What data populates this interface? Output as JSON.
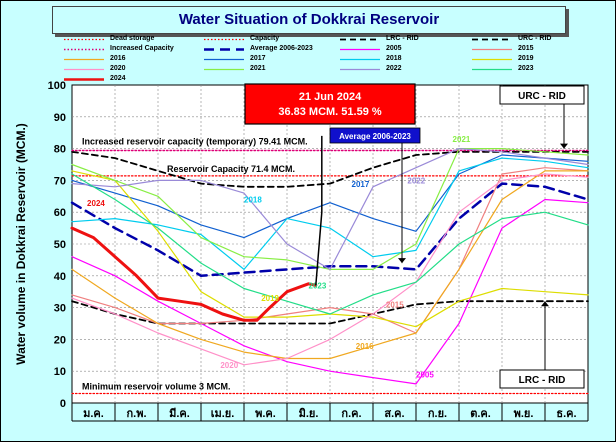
{
  "chart_data": {
    "type": "line",
    "title": "Water Situation of Dokkrai Reservoir",
    "ylabel": "Water volume in Dokkrai Reservoir (MCM.)",
    "xlabel": "",
    "ylim": [
      0,
      100
    ],
    "yticks": [
      "0",
      "10",
      "20",
      "30",
      "40",
      "50",
      "60",
      "70",
      "80",
      "90",
      "100"
    ],
    "months": [
      "ม.ค.",
      "ก.พ.",
      "มี.ค.",
      "เม.ย.",
      "พ.ค.",
      "มิ.ย.",
      "ก.ค.",
      "ส.ค.",
      "ก.ย.",
      "ต.ค.",
      "พ.ย.",
      "ธ.ค."
    ],
    "grid": true,
    "series": [
      {
        "name": "Dead storage",
        "color": "#ff0000",
        "style": "dotted",
        "width": 1.2,
        "values": [
          [
            0,
            3
          ],
          [
            12,
            3
          ]
        ]
      },
      {
        "name": "Capacity",
        "color": "#ff0000",
        "style": "dotted",
        "width": 1.2,
        "values": [
          [
            0,
            71.4
          ],
          [
            12,
            71.4
          ]
        ]
      },
      {
        "name": "LRC - RID",
        "color": "#000000",
        "style": "dashed",
        "width": 1.8,
        "values": [
          [
            0,
            32
          ],
          [
            1,
            28
          ],
          [
            2,
            25
          ],
          [
            3,
            25
          ],
          [
            4,
            25
          ],
          [
            5,
            25
          ],
          [
            6,
            25
          ],
          [
            7,
            28
          ],
          [
            8,
            31
          ],
          [
            9,
            32
          ],
          [
            10,
            32
          ],
          [
            11,
            32
          ],
          [
            12,
            32
          ]
        ]
      },
      {
        "name": "URC - RID",
        "color": "#000000",
        "style": "dashed",
        "width": 1.8,
        "values": [
          [
            0,
            79
          ],
          [
            1,
            77
          ],
          [
            2,
            73
          ],
          [
            3,
            69
          ],
          [
            4,
            68
          ],
          [
            5,
            68
          ],
          [
            6,
            69
          ],
          [
            7,
            74
          ],
          [
            8,
            78
          ],
          [
            9,
            79
          ],
          [
            10,
            79
          ],
          [
            11,
            79
          ],
          [
            12,
            79
          ]
        ]
      },
      {
        "name": "Increased Capacity",
        "color": "#dd0077",
        "style": "dotted",
        "width": 1.4,
        "values": [
          [
            0,
            79.41
          ],
          [
            12,
            79.41
          ]
        ]
      },
      {
        "name": "Average 2006-2023",
        "color": "#0000aa",
        "style": "longdash",
        "width": 2.5,
        "values": [
          [
            0,
            63
          ],
          [
            1,
            55
          ],
          [
            2,
            48
          ],
          [
            3,
            40
          ],
          [
            4,
            41
          ],
          [
            5,
            42
          ],
          [
            6,
            43
          ],
          [
            7,
            43
          ],
          [
            8,
            42
          ],
          [
            9,
            58
          ],
          [
            10,
            69
          ],
          [
            11,
            68
          ],
          [
            12,
            64
          ]
        ]
      },
      {
        "name": "2005",
        "color": "#ff00ff",
        "style": "solid",
        "width": 1.2,
        "values": [
          [
            0,
            46
          ],
          [
            1,
            40
          ],
          [
            2,
            32
          ],
          [
            3,
            25
          ],
          [
            4,
            18
          ],
          [
            5,
            13
          ],
          [
            6,
            10
          ],
          [
            7,
            8
          ],
          [
            8,
            6
          ],
          [
            9,
            25
          ],
          [
            10,
            55
          ],
          [
            11,
            64
          ],
          [
            12,
            63
          ]
        ]
      },
      {
        "name": "2015",
        "color": "#f08080",
        "style": "solid",
        "width": 1.2,
        "values": [
          [
            0,
            34
          ],
          [
            1,
            30
          ],
          [
            2,
            25
          ],
          [
            3,
            25
          ],
          [
            4,
            26
          ],
          [
            5,
            28
          ],
          [
            6,
            30
          ],
          [
            7,
            28
          ],
          [
            8,
            22
          ],
          [
            9,
            42
          ],
          [
            10,
            72
          ],
          [
            11,
            74
          ],
          [
            12,
            73
          ]
        ]
      },
      {
        "name": "2016",
        "color": "#f0a820",
        "style": "solid",
        "width": 1.2,
        "values": [
          [
            0,
            42
          ],
          [
            1,
            33
          ],
          [
            2,
            25
          ],
          [
            3,
            20
          ],
          [
            4,
            16
          ],
          [
            5,
            14
          ],
          [
            6,
            14
          ],
          [
            7,
            18
          ],
          [
            8,
            22
          ],
          [
            9,
            42
          ],
          [
            10,
            64
          ],
          [
            11,
            73
          ],
          [
            12,
            73
          ]
        ]
      },
      {
        "name": "2017",
        "color": "#1060d0",
        "style": "solid",
        "width": 1.2,
        "values": [
          [
            0,
            70
          ],
          [
            1,
            66
          ],
          [
            2,
            62
          ],
          [
            3,
            56
          ],
          [
            4,
            52
          ],
          [
            5,
            58
          ],
          [
            6,
            63
          ],
          [
            7,
            58
          ],
          [
            8,
            54
          ],
          [
            9,
            72
          ],
          [
            10,
            78
          ],
          [
            11,
            77
          ],
          [
            12,
            76
          ]
        ]
      },
      {
        "name": "2018",
        "color": "#00ccee",
        "style": "solid",
        "width": 1.2,
        "values": [
          [
            0,
            57
          ],
          [
            1,
            58
          ],
          [
            2,
            56
          ],
          [
            3,
            53
          ],
          [
            4,
            42
          ],
          [
            5,
            58
          ],
          [
            6,
            55
          ],
          [
            7,
            46
          ],
          [
            8,
            48
          ],
          [
            9,
            73
          ],
          [
            10,
            77
          ],
          [
            11,
            76
          ],
          [
            12,
            74
          ]
        ]
      },
      {
        "name": "2019",
        "color": "#dddd00",
        "style": "solid",
        "width": 1.2,
        "values": [
          [
            0,
            73
          ],
          [
            1,
            70
          ],
          [
            2,
            54
          ],
          [
            3,
            35
          ],
          [
            4,
            27
          ],
          [
            5,
            27
          ],
          [
            6,
            28
          ],
          [
            7,
            27
          ],
          [
            8,
            24
          ],
          [
            9,
            32
          ],
          [
            10,
            36
          ],
          [
            11,
            35
          ],
          [
            12,
            34
          ]
        ]
      },
      {
        "name": "2020",
        "color": "#ff90c8",
        "style": "solid",
        "width": 1.2,
        "values": [
          [
            0,
            33
          ],
          [
            1,
            28
          ],
          [
            2,
            22
          ],
          [
            3,
            17
          ],
          [
            4,
            12
          ],
          [
            5,
            14
          ],
          [
            6,
            20
          ],
          [
            7,
            28
          ],
          [
            8,
            38
          ],
          [
            9,
            60
          ],
          [
            10,
            70
          ],
          [
            11,
            72
          ],
          [
            12,
            71
          ]
        ]
      },
      {
        "name": "2021",
        "color": "#88ee44",
        "style": "solid",
        "width": 1.2,
        "values": [
          [
            0,
            75
          ],
          [
            1,
            70
          ],
          [
            2,
            65
          ],
          [
            3,
            52
          ],
          [
            4,
            46
          ],
          [
            5,
            45
          ],
          [
            6,
            42
          ],
          [
            7,
            42
          ],
          [
            8,
            50
          ],
          [
            9,
            80
          ],
          [
            10,
            80
          ],
          [
            11,
            79
          ],
          [
            12,
            78
          ]
        ]
      },
      {
        "name": "2022",
        "color": "#9a8ad8",
        "style": "solid",
        "width": 1.2,
        "values": [
          [
            0,
            69
          ],
          [
            1,
            68
          ],
          [
            2,
            70
          ],
          [
            3,
            70
          ],
          [
            4,
            66
          ],
          [
            5,
            50
          ],
          [
            6,
            42
          ],
          [
            7,
            68
          ],
          [
            8,
            74
          ],
          [
            9,
            80
          ],
          [
            10,
            79
          ],
          [
            11,
            77
          ],
          [
            12,
            75
          ]
        ]
      },
      {
        "name": "2023",
        "color": "#22dd88",
        "style": "solid",
        "width": 1.2,
        "values": [
          [
            0,
            72
          ],
          [
            1,
            64
          ],
          [
            2,
            55
          ],
          [
            3,
            44
          ],
          [
            4,
            36
          ],
          [
            5,
            32
          ],
          [
            6,
            28
          ],
          [
            7,
            34
          ],
          [
            8,
            38
          ],
          [
            9,
            50
          ],
          [
            10,
            58
          ],
          [
            11,
            60
          ],
          [
            12,
            56
          ]
        ]
      },
      {
        "name": "2024",
        "color": "#ee1111",
        "style": "solid",
        "width": 3,
        "values": [
          [
            0,
            55
          ],
          [
            0.5,
            52
          ],
          [
            1,
            46
          ],
          [
            1.5,
            40
          ],
          [
            2,
            33
          ],
          [
            2.5,
            32
          ],
          [
            3,
            31
          ],
          [
            3.5,
            28
          ],
          [
            4,
            26
          ],
          [
            4.3,
            26
          ],
          [
            4.6,
            30
          ],
          [
            5,
            35
          ],
          [
            5.5,
            37.5
          ],
          [
            5.67,
            37
          ]
        ]
      }
    ],
    "legend_position": "top",
    "legend_columns": [
      [
        "Dead storage",
        "Increased Capacity",
        "2016",
        "2020",
        "2024"
      ],
      [
        "Capacity",
        "Average 2006-2023",
        "2017",
        "2021"
      ],
      [
        "LRC - RID",
        "2005",
        "2018",
        "2022"
      ],
      [
        "URC - RID",
        "2015",
        "2019",
        "2023"
      ]
    ],
    "annotations": {
      "increased_capacity": "Increased reservoir capacity (temporary) 79.41 MCM.",
      "capacity": "Reservoir Capacity 71.4 MCM.",
      "minimum": "Minimum reservoir volume 3 MCM.",
      "current_date": "21 Jun 2024",
      "current_value": "36.83 MCM. 51.59 %",
      "average_label": "Average 2006-2023",
      "urc_label": "URC - RID",
      "lrc_label": "LRC - RID",
      "year_labels": [
        {
          "text": "2024",
          "x": 0.35,
          "y": 62,
          "color": "#ee1111"
        },
        {
          "text": "2018",
          "x": 4.0,
          "y": 63,
          "color": "#00ccee"
        },
        {
          "text": "2017",
          "x": 6.5,
          "y": 68,
          "color": "#1060d0"
        },
        {
          "text": "2022",
          "x": 7.8,
          "y": 69,
          "color": "#9a8ad8"
        },
        {
          "text": "2021",
          "x": 8.85,
          "y": 82,
          "color": "#88ee44"
        },
        {
          "text": "2019",
          "x": 4.4,
          "y": 32,
          "color": "#dddd00"
        },
        {
          "text": "2023",
          "x": 5.5,
          "y": 36,
          "color": "#22dd88"
        },
        {
          "text": "2015",
          "x": 7.3,
          "y": 30,
          "color": "#f08080"
        },
        {
          "text": "2016",
          "x": 6.6,
          "y": 17,
          "color": "#f0a820"
        },
        {
          "text": "2020",
          "x": 3.45,
          "y": 11,
          "color": "#ff90c8"
        },
        {
          "text": "2005",
          "x": 8.0,
          "y": 8,
          "color": "#ff00ff"
        }
      ]
    }
  }
}
